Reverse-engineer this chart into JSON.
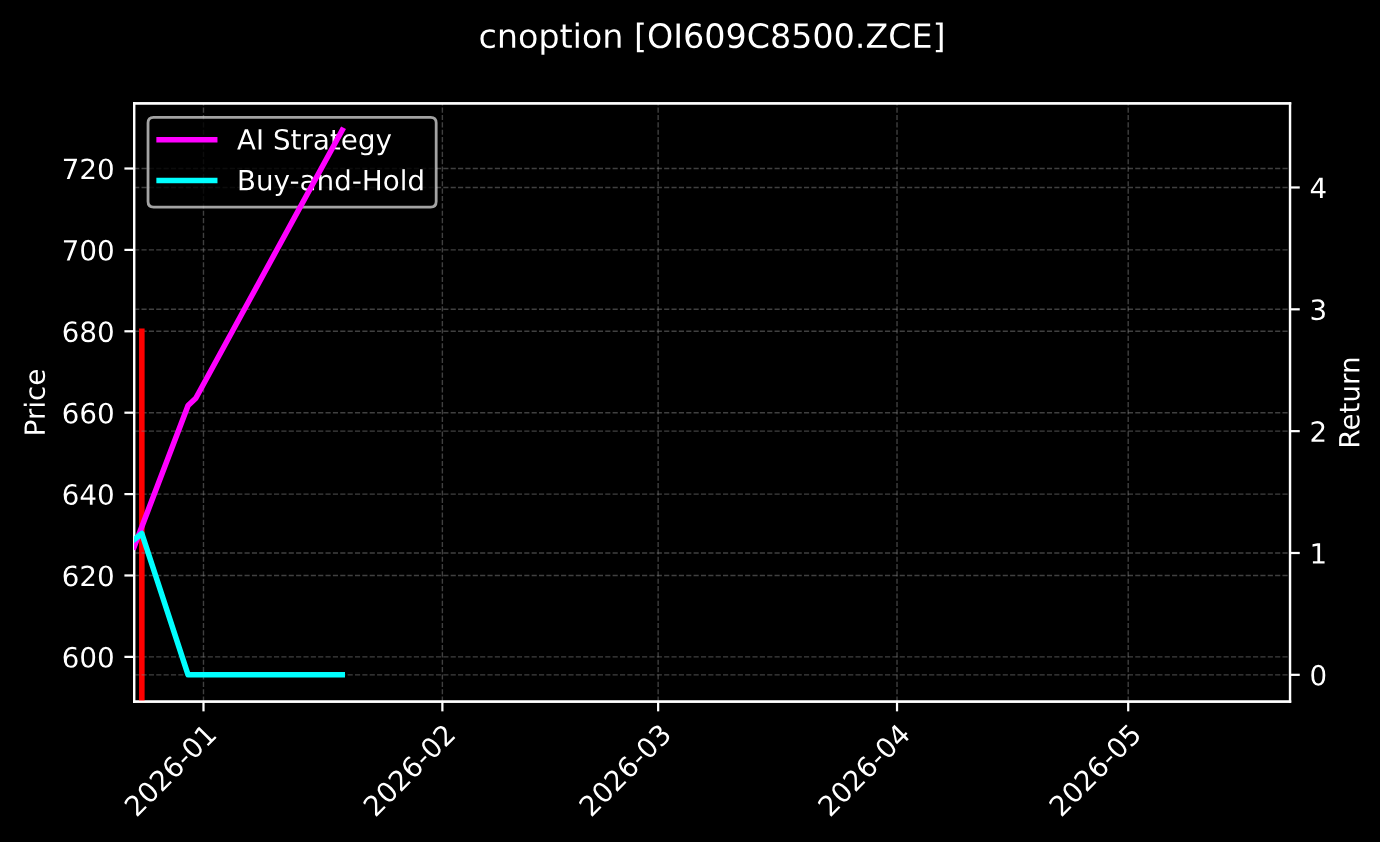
{
  "chart_data": {
    "type": "line",
    "title": "cnoption [OI609C8500.ZCE]",
    "ylabel": "Price",
    "y2label": "Return",
    "xlim": [
      "2025-12-23",
      "2026-05-22"
    ],
    "xticks": [
      {
        "value": "2026-01-01",
        "label": "2026-01"
      },
      {
        "value": "2026-02-01",
        "label": "2026-02"
      },
      {
        "value": "2026-03-01",
        "label": "2026-03"
      },
      {
        "value": "2026-04-01",
        "label": "2026-04"
      },
      {
        "value": "2026-05-01",
        "label": "2026-05"
      }
    ],
    "ylim": [
      589,
      736
    ],
    "yticks": [
      600,
      620,
      640,
      660,
      680,
      700,
      720
    ],
    "y2lim": [
      -0.22,
      4.69
    ],
    "y2ticks": [
      0,
      1,
      2,
      3,
      4
    ],
    "grid": true,
    "legend": "top left",
    "line_style": "solid",
    "series": [
      {
        "color": "#ff0000",
        "x": [
          "2025-12-24",
          "2025-12-24"
        ],
        "values": [
          680,
          589
        ]
      },
      {
        "name": "AI Strategy",
        "color": "#ff00ff",
        "axis": "y2",
        "x": [
          "2025-12-23",
          "2025-12-30",
          "2025-12-31",
          "2026-01-19"
        ],
        "values": [
          1.05,
          2.21,
          2.27,
          4.47
        ]
      },
      {
        "name": "Buy-and-Hold",
        "color": "#00ffff",
        "axis": "y2",
        "x": [
          "2025-12-23",
          "2025-12-24",
          "2025-12-30",
          "2026-01-19"
        ],
        "values": [
          1.11,
          1.16,
          0,
          0
        ]
      }
    ]
  }
}
